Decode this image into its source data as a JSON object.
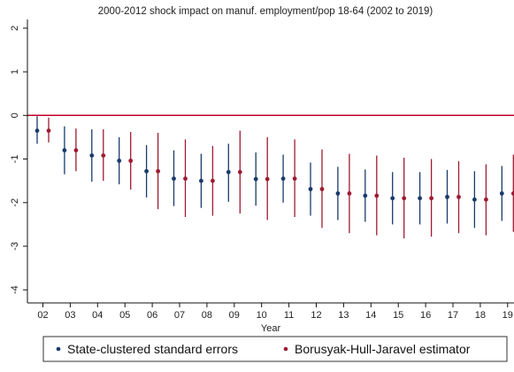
{
  "chart_data": {
    "type": "scatter",
    "title": "2000-2012 shock impact on manuf. employment/pop 18-64 (2002 to 2019)",
    "xlabel": "Year",
    "ylabel": "",
    "categories": [
      "02",
      "03",
      "04",
      "05",
      "06",
      "07",
      "08",
      "09",
      "10",
      "11",
      "12",
      "13",
      "14",
      "15",
      "16",
      "17",
      "18",
      "19"
    ],
    "yticks": [
      2,
      1,
      0,
      -1,
      -2,
      -3,
      -4
    ],
    "ytick_labels": [
      "2",
      "1",
      "0",
      "-1",
      "-2",
      "-3",
      "-4"
    ],
    "ylim": [
      -4.3,
      2.2
    ],
    "grid": false,
    "reference_line": {
      "y": 0,
      "color": "#c0002a"
    },
    "legend_position": "bottom",
    "series": [
      {
        "name": "State-clustered standard errors",
        "color": "#1a3a6b",
        "point": [
          -0.35,
          -0.8,
          -0.92,
          -1.04,
          -1.28,
          -1.45,
          -1.5,
          -1.3,
          -1.46,
          -1.45,
          -1.69,
          -1.79,
          -1.84,
          -1.9,
          -1.9,
          -1.87,
          -1.93,
          -1.79
        ],
        "lower": [
          -0.65,
          -1.35,
          -1.52,
          -1.58,
          -1.88,
          -2.08,
          -2.12,
          -1.98,
          -2.07,
          -2.0,
          -2.3,
          -2.4,
          -2.44,
          -2.5,
          -2.5,
          -2.48,
          -2.58,
          -2.42
        ],
        "upper": [
          -0.02,
          -0.25,
          -0.32,
          -0.5,
          -0.68,
          -0.8,
          -0.88,
          -0.65,
          -0.85,
          -0.9,
          -1.08,
          -1.18,
          -1.24,
          -1.3,
          -1.3,
          -1.25,
          -1.28,
          -1.16
        ]
      },
      {
        "name": "Borusyak-Hull-Jaravel estimator",
        "color": "#9e1b32",
        "point": [
          -0.35,
          -0.8,
          -0.92,
          -1.04,
          -1.28,
          -1.45,
          -1.5,
          -1.3,
          -1.46,
          -1.45,
          -1.69,
          -1.79,
          -1.84,
          -1.9,
          -1.9,
          -1.87,
          -1.93,
          -1.79
        ],
        "lower": [
          -0.62,
          -1.28,
          -1.5,
          -1.7,
          -2.15,
          -2.33,
          -2.3,
          -2.25,
          -2.4,
          -2.33,
          -2.58,
          -2.7,
          -2.75,
          -2.82,
          -2.78,
          -2.7,
          -2.75,
          -2.67
        ],
        "upper": [
          -0.05,
          -0.3,
          -0.32,
          -0.38,
          -0.4,
          -0.55,
          -0.7,
          -0.35,
          -0.5,
          -0.55,
          -0.78,
          -0.88,
          -0.92,
          -0.97,
          -1.0,
          -1.05,
          -1.12,
          -0.9
        ]
      }
    ]
  }
}
